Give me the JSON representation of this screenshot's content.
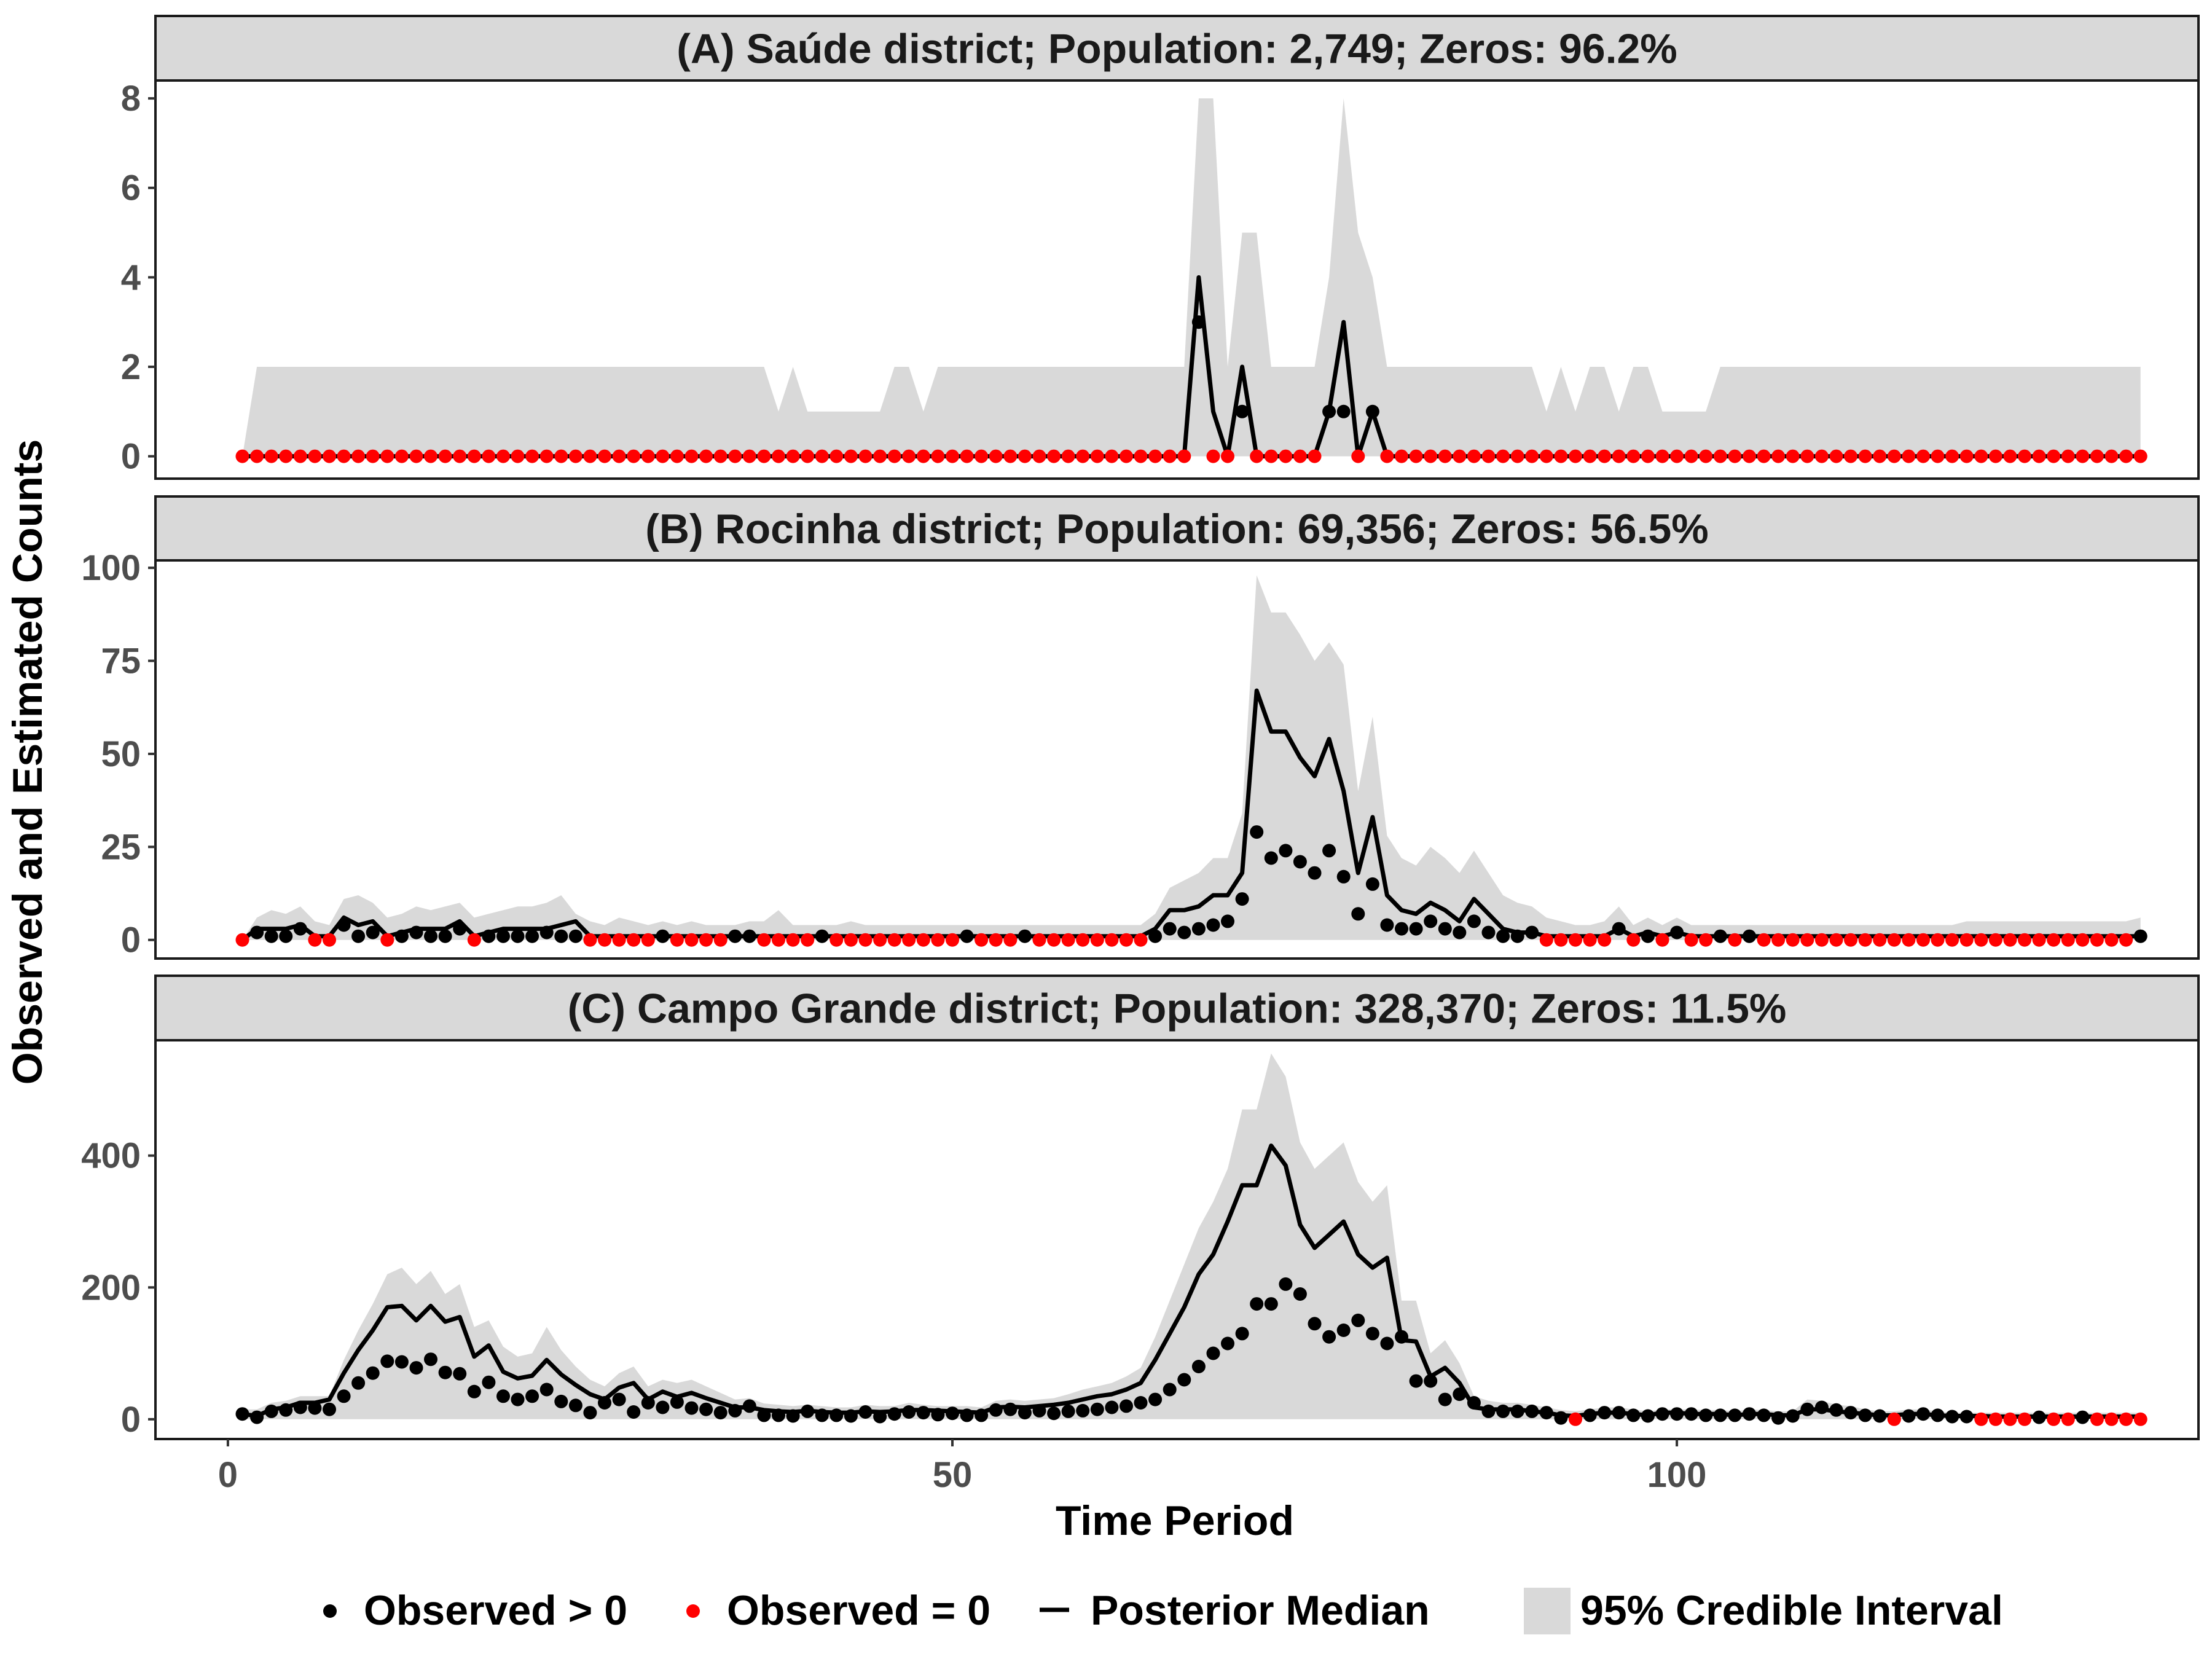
{
  "chart_data": {
    "type": "line",
    "colors": {
      "observed_pos": "#000000",
      "observed_zero": "#ff0000",
      "median": "#000000",
      "interval": "#d9d9d9",
      "strip_bg": "#d9d9d9"
    },
    "xlabel": "Time Period",
    "ylabel": "Observed and Estimated Counts",
    "xlim": [
      -5,
      136
    ],
    "x_ticks": [
      0,
      50,
      100
    ],
    "legend": {
      "position": "bottom",
      "observed_pos": "Observed > 0",
      "observed_zero": "Observed = 0",
      "median": "Posterior Median",
      "interval": "95% Credible Interval"
    },
    "panels": [
      {
        "title": "(A) Saúde district; Population:   2,749; Zeros: 96.2%",
        "ylim": [
          -0.5,
          8.4
        ],
        "y_ticks": [
          0,
          2,
          4,
          6,
          8
        ],
        "observed": [
          0,
          0,
          0,
          0,
          0,
          0,
          0,
          0,
          0,
          0,
          0,
          0,
          0,
          0,
          0,
          0,
          0,
          0,
          0,
          0,
          0,
          0,
          0,
          0,
          0,
          0,
          0,
          0,
          0,
          0,
          0,
          0,
          0,
          0,
          0,
          0,
          0,
          0,
          0,
          0,
          0,
          0,
          0,
          0,
          0,
          0,
          0,
          0,
          0,
          0,
          0,
          0,
          0,
          0,
          0,
          0,
          0,
          0,
          0,
          0,
          0,
          0,
          0,
          0,
          0,
          0,
          3,
          0,
          0,
          1,
          0,
          0,
          0,
          0,
          0,
          1,
          1,
          0,
          1,
          0,
          0,
          0,
          0,
          0,
          0,
          0,
          0,
          0,
          0,
          0,
          0,
          0,
          0,
          0,
          0,
          0,
          0,
          0,
          0,
          0,
          0,
          0,
          0,
          0,
          0,
          0,
          0,
          0,
          0,
          0,
          0,
          0,
          0,
          0,
          0,
          0,
          0,
          0,
          0,
          0,
          0,
          0,
          0,
          0,
          0,
          0,
          0,
          0,
          0,
          0,
          0,
          0
        ],
        "median": [
          0,
          0,
          0,
          0,
          0,
          0,
          0,
          0,
          0,
          0,
          0,
          0,
          0,
          0,
          0,
          0,
          0,
          0,
          0,
          0,
          0,
          0,
          0,
          0,
          0,
          0,
          0,
          0,
          0,
          0,
          0,
          0,
          0,
          0,
          0,
          0,
          0,
          0,
          0,
          0,
          0,
          0,
          0,
          0,
          0,
          0,
          0,
          0,
          0,
          0,
          0,
          0,
          0,
          0,
          0,
          0,
          0,
          0,
          0,
          0,
          0,
          0,
          0,
          0,
          0,
          0,
          4,
          1,
          0,
          2,
          0,
          0,
          0,
          0,
          0,
          1,
          3,
          0,
          1,
          0,
          0,
          0,
          0,
          0,
          0,
          0,
          0,
          0,
          0,
          0,
          0,
          0,
          0,
          0,
          0,
          0,
          0,
          0,
          0,
          0,
          0,
          0,
          0,
          0,
          0,
          0,
          0,
          0,
          0,
          0,
          0,
          0,
          0,
          0,
          0,
          0,
          0,
          0,
          0,
          0,
          0,
          0,
          0,
          0,
          0,
          0,
          0,
          0,
          0,
          0,
          0,
          0
        ],
        "upper": [
          0,
          2,
          2,
          2,
          2,
          2,
          2,
          2,
          2,
          2,
          2,
          2,
          2,
          2,
          2,
          2,
          2,
          2,
          2,
          2,
          2,
          2,
          2,
          2,
          2,
          2,
          2,
          2,
          2,
          2,
          2,
          2,
          2,
          2,
          2,
          2,
          2,
          1,
          2,
          1,
          1,
          1,
          1,
          1,
          1,
          2,
          2,
          1,
          2,
          2,
          2,
          2,
          2,
          2,
          2,
          2,
          2,
          2,
          2,
          2,
          2,
          2,
          2,
          2,
          2,
          2,
          8,
          8,
          2,
          5,
          5,
          2,
          2,
          2,
          2,
          4,
          8,
          5,
          4,
          2,
          2,
          2,
          2,
          2,
          2,
          2,
          2,
          2,
          2,
          2,
          1,
          2,
          1,
          2,
          2,
          1,
          2,
          2,
          1,
          1,
          1,
          1,
          2,
          2,
          2,
          2,
          2,
          2,
          2,
          2,
          2,
          2,
          2,
          2,
          2,
          2,
          2,
          2,
          2,
          2,
          2,
          2,
          2,
          2,
          2,
          2,
          2,
          2,
          2,
          2,
          2,
          2
        ]
      },
      {
        "title": "(B) Rocinha district; Population:  69,356; Zeros: 56.5%",
        "ylim": [
          -5,
          102
        ],
        "y_ticks": [
          0,
          25,
          50,
          75,
          100
        ],
        "observed": [
          0,
          2,
          1,
          1,
          3,
          0,
          0,
          4,
          1,
          2,
          0,
          1,
          2,
          1,
          1,
          3,
          0,
          1,
          1,
          1,
          1,
          2,
          1,
          1,
          0,
          0,
          0,
          0,
          0,
          1,
          0,
          0,
          0,
          0,
          1,
          1,
          0,
          0,
          0,
          0,
          1,
          0,
          0,
          0,
          0,
          0,
          0,
          0,
          0,
          0,
          1,
          0,
          0,
          0,
          1,
          0,
          0,
          0,
          0,
          0,
          0,
          0,
          0,
          1,
          3,
          2,
          3,
          4,
          5,
          11,
          29,
          22,
          24,
          21,
          18,
          24,
          17,
          7,
          15,
          4,
          3,
          3,
          5,
          3,
          2,
          5,
          2,
          1,
          1,
          2,
          0,
          0,
          0,
          0,
          0,
          3,
          0,
          1,
          0,
          2,
          0,
          0,
          1,
          0,
          1,
          0,
          0,
          0,
          0,
          0,
          0,
          0,
          0,
          0,
          0,
          0,
          0,
          0,
          0,
          0,
          0,
          0,
          0,
          0,
          0,
          0,
          0,
          0,
          0,
          0,
          0,
          1
        ],
        "median": [
          0,
          3,
          3,
          3,
          4,
          1,
          1,
          6,
          4,
          5,
          1,
          2,
          3,
          3,
          3,
          5,
          1,
          2,
          3,
          3,
          3,
          3,
          4,
          5,
          1,
          1,
          1,
          1,
          1,
          1,
          1,
          1,
          1,
          1,
          1,
          1,
          1,
          1,
          1,
          1,
          1,
          1,
          1,
          1,
          1,
          1,
          1,
          1,
          1,
          1,
          1,
          1,
          1,
          1,
          1,
          1,
          1,
          1,
          1,
          1,
          1,
          1,
          1,
          3,
          8,
          8,
          9,
          12,
          12,
          18,
          67,
          56,
          56,
          49,
          44,
          54,
          40,
          18,
          33,
          12,
          8,
          7,
          10,
          8,
          5,
          11,
          7,
          3,
          2,
          2,
          1,
          1,
          1,
          1,
          1,
          3,
          1,
          2,
          1,
          2,
          1,
          1,
          1,
          1,
          1,
          1,
          1,
          1,
          1,
          1,
          1,
          1,
          1,
          1,
          1,
          1,
          1,
          1,
          1,
          1,
          1,
          1,
          1,
          1,
          1,
          1,
          1,
          1,
          1,
          1,
          1,
          1
        ],
        "upper": [
          0,
          6,
          8,
          7,
          9,
          5,
          4,
          11,
          12,
          10,
          6,
          7,
          9,
          8,
          9,
          10,
          6,
          7,
          8,
          9,
          9,
          10,
          12,
          7,
          5,
          4,
          6,
          5,
          4,
          5,
          4,
          5,
          4,
          4,
          4,
          5,
          5,
          8,
          4,
          4,
          4,
          4,
          5,
          4,
          4,
          4,
          4,
          4,
          4,
          4,
          4,
          4,
          4,
          4,
          4,
          4,
          4,
          4,
          4,
          4,
          4,
          4,
          4,
          7,
          14,
          16,
          18,
          22,
          22,
          34,
          98,
          88,
          88,
          82,
          75,
          80,
          74,
          40,
          60,
          28,
          22,
          20,
          25,
          22,
          18,
          24,
          18,
          12,
          10,
          9,
          6,
          5,
          4,
          4,
          5,
          9,
          4,
          6,
          4,
          6,
          4,
          4,
          4,
          4,
          4,
          4,
          4,
          4,
          4,
          4,
          4,
          4,
          4,
          4,
          4,
          4,
          4,
          4,
          4,
          5,
          5,
          5,
          5,
          5,
          5,
          5,
          5,
          5,
          5,
          5,
          5,
          6
        ]
      },
      {
        "title": "(C) Campo Grande district; Population: 328,370; Zeros: 11.5%",
        "ylim": [
          -30,
          575
        ],
        "y_ticks": [
          0,
          200,
          400
        ],
        "observed": [
          8,
          3,
          12,
          14,
          18,
          17,
          15,
          35,
          55,
          70,
          88,
          87,
          78,
          91,
          71,
          69,
          42,
          56,
          35,
          30,
          35,
          45,
          27,
          21,
          10,
          25,
          30,
          11,
          25,
          18,
          26,
          17,
          15,
          10,
          13,
          20,
          6,
          6,
          5,
          12,
          6,
          6,
          5,
          11,
          4,
          8,
          11,
          10,
          7,
          9,
          6,
          6,
          14,
          15,
          10,
          13,
          9,
          12,
          13,
          15,
          18,
          20,
          25,
          30,
          45,
          60,
          80,
          100,
          115,
          130,
          175,
          175,
          205,
          190,
          145,
          125,
          135,
          150,
          130,
          115,
          125,
          58,
          58,
          30,
          38,
          25,
          12,
          12,
          12,
          12,
          10,
          2,
          0,
          6,
          10,
          10,
          6,
          5,
          8,
          8,
          8,
          6,
          6,
          6,
          8,
          6,
          2,
          5,
          15,
          18,
          14,
          10,
          6,
          5,
          0,
          5,
          8,
          6,
          4,
          4,
          0,
          0,
          0,
          0,
          3,
          0,
          0,
          3,
          0,
          0,
          0,
          0
        ],
        "median": [
          8,
          5,
          15,
          18,
          25,
          25,
          30,
          70,
          105,
          135,
          170,
          172,
          150,
          172,
          148,
          155,
          95,
          112,
          72,
          62,
          66,
          90,
          68,
          52,
          38,
          30,
          48,
          55,
          30,
          42,
          34,
          40,
          32,
          25,
          18,
          18,
          14,
          12,
          11,
          13,
          11,
          10,
          10,
          12,
          11,
          12,
          14,
          14,
          13,
          12,
          11,
          10,
          18,
          19,
          18,
          20,
          22,
          25,
          30,
          35,
          38,
          45,
          55,
          90,
          130,
          170,
          220,
          250,
          300,
          355,
          355,
          415,
          385,
          295,
          260,
          280,
          300,
          250,
          230,
          245,
          120,
          118,
          65,
          78,
          55,
          18,
          15,
          15,
          15,
          12,
          10,
          6,
          5,
          8,
          10,
          10,
          8,
          6,
          10,
          10,
          8,
          8,
          8,
          6,
          8,
          8,
          6,
          6,
          15,
          15,
          12,
          10,
          8,
          6,
          6,
          8,
          8,
          6,
          5,
          5,
          5,
          4,
          4,
          4,
          4,
          4,
          4,
          4,
          4,
          4,
          4,
          4
        ],
        "upper": [
          15,
          15,
          25,
          28,
          35,
          35,
          35,
          90,
          135,
          175,
          220,
          230,
          205,
          225,
          190,
          205,
          140,
          150,
          110,
          95,
          100,
          140,
          105,
          80,
          60,
          50,
          70,
          80,
          50,
          60,
          55,
          60,
          50,
          40,
          30,
          32,
          24,
          22,
          20,
          22,
          20,
          18,
          18,
          22,
          20,
          20,
          25,
          22,
          20,
          20,
          20,
          18,
          28,
          30,
          28,
          30,
          32,
          38,
          45,
          50,
          55,
          65,
          78,
          125,
          180,
          235,
          290,
          330,
          380,
          470,
          470,
          555,
          520,
          420,
          380,
          400,
          420,
          360,
          330,
          355,
          180,
          180,
          100,
          120,
          85,
          35,
          28,
          25,
          25,
          22,
          18,
          14,
          12,
          15,
          18,
          18,
          15,
          12,
          15,
          15,
          15,
          14,
          14,
          12,
          15,
          14,
          12,
          12,
          30,
          28,
          22,
          20,
          15,
          12,
          12,
          15,
          15,
          12,
          10,
          10,
          10,
          10,
          10,
          10,
          10,
          10,
          10,
          10,
          10,
          10,
          10,
          10
        ]
      }
    ]
  }
}
